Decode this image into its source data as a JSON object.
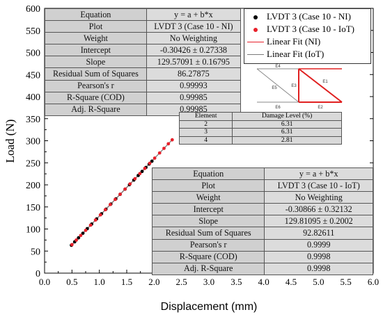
{
  "chart_data": {
    "type": "scatter",
    "xlabel": "Displacement (mm)",
    "ylabel": "Load (N)",
    "xlim": [
      0,
      6
    ],
    "ylim": [
      0,
      600
    ],
    "xticks": [
      "0.0",
      "0.5",
      "1.0",
      "1.5",
      "2.0",
      "2.5",
      "3.0",
      "3.5",
      "4.0",
      "4.5",
      "5.0",
      "5.5",
      "6.0"
    ],
    "yticks": [
      "0",
      "50",
      "100",
      "150",
      "200",
      "250",
      "300",
      "350",
      "400",
      "450",
      "500",
      "550",
      "600"
    ],
    "grid": false,
    "legend_position": "top-right",
    "series": [
      {
        "name": "LVDT 3  (Case 10 - NI)",
        "kind": "scatter",
        "color": "#000000",
        "x": [
          0.49,
          0.55,
          0.62,
          0.7,
          0.78,
          0.86,
          0.95,
          1.04,
          1.12,
          1.21,
          1.3,
          1.38,
          1.47,
          1.55,
          1.63,
          1.71,
          1.78,
          1.85,
          1.91,
          1.96
        ],
        "y": [
          63.2,
          71.0,
          80.0,
          90.4,
          100.8,
          111.1,
          122.8,
          134.5,
          144.8,
          156.5,
          168.2,
          178.5,
          190.2,
          200.5,
          210.9,
          221.3,
          230.4,
          239.4,
          247.2,
          253.7
        ]
      },
      {
        "name": "LVDT 3  (Case 10 - IoT)",
        "kind": "scatter",
        "color": "#e8202a",
        "x": [
          0.5,
          0.58,
          0.66,
          0.75,
          0.84,
          0.93,
          1.02,
          1.11,
          1.2,
          1.29,
          1.38,
          1.47,
          1.56,
          1.65,
          1.74,
          1.83,
          1.92,
          2.01,
          2.1,
          2.18,
          2.26,
          2.33
        ],
        "y": [
          64.6,
          75.0,
          85.4,
          97.0,
          108.7,
          120.4,
          132.1,
          143.8,
          155.5,
          167.1,
          178.8,
          190.5,
          202.2,
          213.9,
          225.6,
          237.3,
          249.0,
          260.6,
          272.3,
          282.7,
          293.1,
          302.1
        ]
      },
      {
        "name": "Linear Fit (NI)",
        "kind": "line",
        "color": "#e8202a",
        "x": [
          0.48,
          1.97
        ],
        "y": [
          61.9,
          255.0
        ]
      },
      {
        "name": "Linear Fit (IoT)",
        "kind": "line",
        "color": "#7a7a7a",
        "x": [
          0.48,
          2.34
        ],
        "y": [
          62.0,
          303.4
        ]
      }
    ],
    "fit_tables": [
      {
        "header": [
          "Equation",
          "y = a + b*x"
        ],
        "rows": [
          [
            "Plot",
            "LVDT 3  (Case 10 - NI)"
          ],
          [
            "Weight",
            "No Weighting"
          ],
          [
            "Intercept",
            "-0.30426 ± 0.27338"
          ],
          [
            "Slope",
            "129.57091 ± 0.16795"
          ],
          [
            "Residual Sum of Squares",
            "86.27875"
          ],
          [
            "Pearson's r",
            "0.99993"
          ],
          [
            "R-Square (COD)",
            "0.99985"
          ],
          [
            "Adj. R-Square",
            "0.99985"
          ]
        ]
      },
      {
        "header": [
          "Equation",
          "y = a + b*x"
        ],
        "rows": [
          [
            "Plot",
            "LVDT 3  (Case 10 - IoT)"
          ],
          [
            "Weight",
            "No Weighting"
          ],
          [
            "Intercept",
            "-0.30866 ± 0.32132"
          ],
          [
            "Slope",
            "129.81095 ± 0.2002"
          ],
          [
            "Residual Sum of Squares",
            "92.82611"
          ],
          [
            "Pearson's r",
            "0.9999"
          ],
          [
            "R-Square (COD)",
            "0.9998"
          ],
          [
            "Adj. R-Square",
            "0.9998"
          ]
        ]
      }
    ],
    "damage_table": {
      "header": [
        "Element",
        "Damage Level (%)"
      ],
      "rows": [
        [
          "2",
          "6.31"
        ],
        [
          "3",
          "6.31"
        ],
        [
          "4",
          "2.81"
        ]
      ]
    },
    "structure_labels": {
      "e4": "E4",
      "e5": "E5",
      "e3": "E3",
      "e1": "E1",
      "e6": "E6",
      "e2": "E2"
    }
  }
}
